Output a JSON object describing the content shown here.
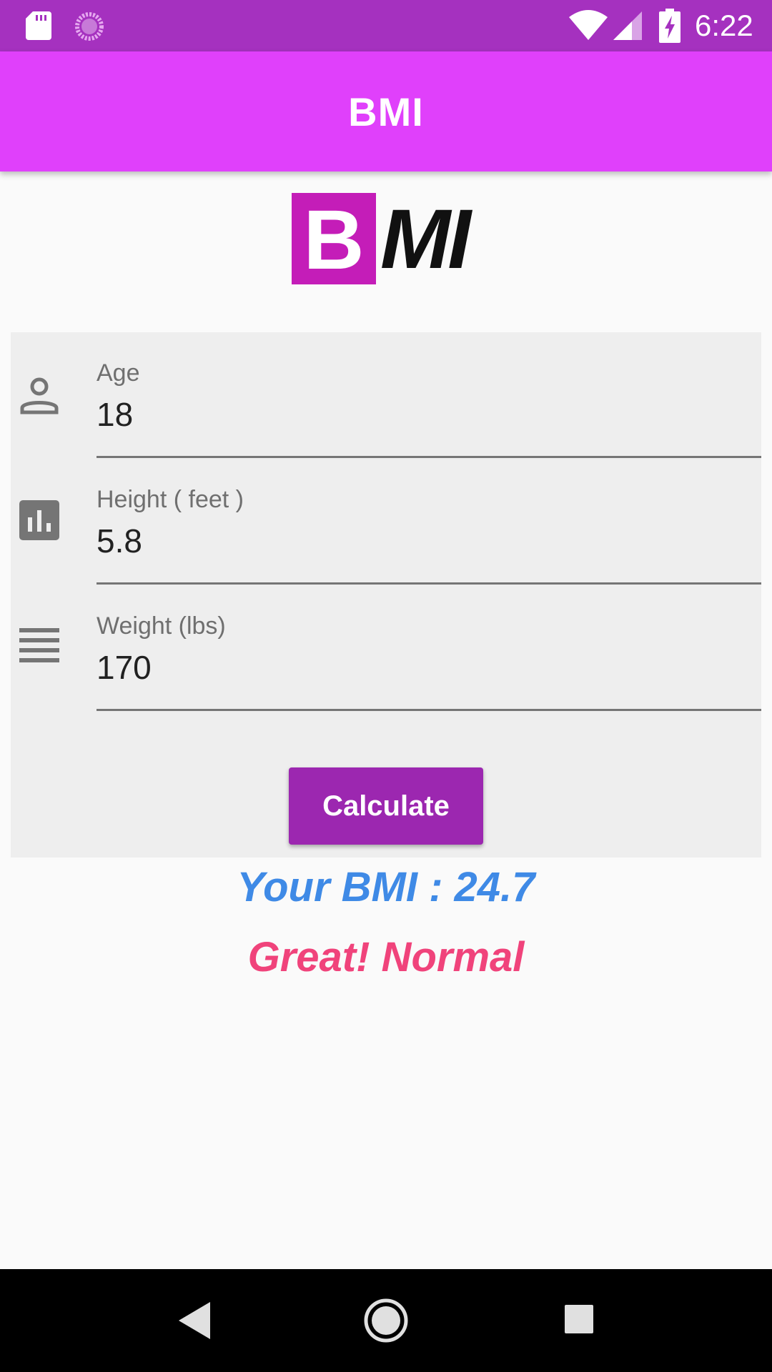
{
  "status_bar": {
    "time": "6:22",
    "icons": [
      "sd-card-icon",
      "sync-icon",
      "wifi-icon",
      "signal-icon",
      "battery-charging-icon"
    ]
  },
  "app_bar": {
    "title": "BMI"
  },
  "logo": {
    "box_letter": "B",
    "rest_letters": "MI",
    "box_color": "#c41db8"
  },
  "form": {
    "fields": [
      {
        "icon": "person-icon",
        "label": "Age",
        "value": "18"
      },
      {
        "icon": "bar-chart-icon",
        "label": "Height ( feet )",
        "value": "5.8"
      },
      {
        "icon": "list-lines-icon",
        "label": "Weight (lbs)",
        "value": "170"
      }
    ],
    "calculate_label": "Calculate"
  },
  "result": {
    "bmi_text": "Your BMI : 24.7",
    "status_text": "Great! Normal"
  },
  "colors": {
    "status_bar": "#a531bf",
    "app_bar": "#e040fb",
    "button": "#9c27b0",
    "bmi_text": "#3f8ae6",
    "status_text": "#f0437b"
  },
  "nav_bar": {
    "icons": [
      "back-icon",
      "home-icon",
      "recents-icon"
    ]
  }
}
